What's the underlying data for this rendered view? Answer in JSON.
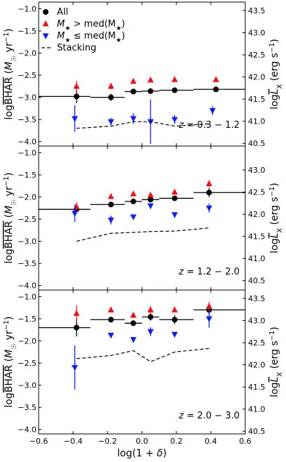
{
  "chart_data": [
    {
      "type": "scatter",
      "annotation": "z = 0.3 − 1.2",
      "xlim": [
        -0.6,
        0.6
      ],
      "ylim": [
        -4.1,
        -0.85
      ],
      "yticks": [
        -1.0,
        -1.5,
        -2.0,
        -2.5,
        -3.0,
        -3.5,
        -4.0
      ],
      "right_ylabel": "logL̄X (erg s⁻¹)",
      "right_ticks": [
        "43.5",
        "43.0",
        "42.5",
        "42.0",
        "41.5",
        "41.0",
        "40.5"
      ],
      "legend": {
        "placement": "upper-left",
        "entries": [
          "All",
          "M★ > med(M★)",
          "M★ ≤ med(M★)",
          "Stacking"
        ]
      },
      "series": [
        {
          "name": "All",
          "marker": "circle",
          "color": "#000000",
          "points": [
            {
              "x": -0.38,
              "y": -2.98,
              "yerr": 0.15,
              "xlo": -0.6,
              "xhi": -0.3
            },
            {
              "x": -0.18,
              "y": -3.0,
              "yerr": 0.08,
              "xlo": -0.3,
              "xhi": -0.1
            },
            {
              "x": -0.05,
              "y": -2.87,
              "yerr": 0.05,
              "xlo": -0.1,
              "xhi": 0.0
            },
            {
              "x": 0.05,
              "y": -2.86,
              "yerr": 0.05,
              "xlo": 0.0,
              "xhi": 0.1
            },
            {
              "x": 0.19,
              "y": -2.84,
              "yerr": 0.05,
              "xlo": 0.1,
              "xhi": 0.3
            },
            {
              "x": 0.43,
              "y": -2.82,
              "yerr": 0.05,
              "xlo": 0.3,
              "xhi": 0.6
            }
          ]
        },
        {
          "name": "M★ > med(M★)",
          "marker": "triangle-up",
          "color": "#e8141b",
          "points": [
            {
              "x": -0.38,
              "y": -2.75,
              "yerr": 0.12
            },
            {
              "x": -0.18,
              "y": -2.75,
              "yerr": 0.07
            },
            {
              "x": -0.05,
              "y": -2.64,
              "yerr": 0.04
            },
            {
              "x": 0.05,
              "y": -2.61,
              "yerr": 0.04
            },
            {
              "x": 0.19,
              "y": -2.6,
              "yerr": 0.03
            },
            {
              "x": 0.43,
              "y": -2.6,
              "yerr": 0.03
            }
          ]
        },
        {
          "name": "M★ ≤ med(M★)",
          "marker": "triangle-down",
          "color": "#1022e8",
          "points": [
            {
              "x": -0.39,
              "y": -3.48,
              "yerr": 0.3
            },
            {
              "x": -0.18,
              "y": -3.55,
              "yerr": 0.08
            },
            {
              "x": -0.05,
              "y": -3.48,
              "yerr": 0.12
            },
            {
              "x": 0.05,
              "y": -3.55,
              "yerr": 0.5
            },
            {
              "x": 0.19,
              "y": -3.5,
              "yerr": 0.1
            },
            {
              "x": 0.41,
              "y": -3.3,
              "yerr": 0.1
            }
          ]
        },
        {
          "name": "Stacking",
          "style": "dashed",
          "color": "#000000",
          "x": [
            -0.38,
            -0.18,
            -0.05,
            0.05,
            0.19,
            0.39
          ],
          "y": [
            -3.7,
            -3.65,
            -3.55,
            -3.55,
            -3.65,
            -3.6
          ]
        }
      ]
    },
    {
      "type": "scatter",
      "annotation": "z = 1.2 − 2.0",
      "xlim": [
        -0.6,
        0.6
      ],
      "ylim": [
        -4.1,
        -0.85
      ],
      "yticks": [
        -1.0,
        -1.5,
        -2.0,
        -2.5,
        -3.0,
        -3.5,
        -4.0
      ],
      "ylabel": "logBHAR (M☉ yr⁻¹)",
      "right_ylabel": "logL̄X (erg s⁻¹)",
      "right_ticks": [
        "43.0",
        "42.5",
        "42.0",
        "41.5",
        "41.0",
        "40.5"
      ],
      "series": [
        {
          "name": "All",
          "marker": "circle",
          "color": "#000000",
          "points": [
            {
              "x": -0.38,
              "y": -2.28,
              "yerr": 0.08,
              "xlo": -0.6,
              "xhi": -0.3
            },
            {
              "x": -0.18,
              "y": -2.17,
              "yerr": 0.06,
              "xlo": -0.3,
              "xhi": -0.1
            },
            {
              "x": -0.05,
              "y": -2.1,
              "yerr": 0.04,
              "xlo": -0.1,
              "xhi": 0.0
            },
            {
              "x": 0.05,
              "y": -2.06,
              "yerr": 0.04,
              "xlo": 0.0,
              "xhi": 0.1
            },
            {
              "x": 0.19,
              "y": -2.03,
              "yerr": 0.03,
              "xlo": 0.1,
              "xhi": 0.3
            },
            {
              "x": 0.39,
              "y": -1.9,
              "yerr": 0.1,
              "xlo": 0.3,
              "xhi": 0.6
            }
          ]
        },
        {
          "name": "M★ > med(M★)",
          "marker": "triangle-up",
          "color": "#e8141b",
          "points": [
            {
              "x": -0.38,
              "y": -2.22,
              "yerr": 0.1
            },
            {
              "x": -0.18,
              "y": -1.99,
              "yerr": 0.05
            },
            {
              "x": -0.05,
              "y": -1.93,
              "yerr": 0.03
            },
            {
              "x": 0.05,
              "y": -1.96,
              "yerr": 0.03
            },
            {
              "x": 0.19,
              "y": -1.89,
              "yerr": 0.03
            },
            {
              "x": 0.39,
              "y": -1.7,
              "yerr": 0.08
            }
          ]
        },
        {
          "name": "M★ ≤ med(M★)",
          "marker": "triangle-down",
          "color": "#1022e8",
          "points": [
            {
              "x": -0.39,
              "y": -2.37,
              "yerr": 0.2
            },
            {
              "x": -0.18,
              "y": -2.52,
              "yerr": 0.1
            },
            {
              "x": -0.05,
              "y": -2.45,
              "yerr": 0.05
            },
            {
              "x": 0.05,
              "y": -2.2,
              "yerr": 0.05
            },
            {
              "x": 0.19,
              "y": -2.4,
              "yerr": 0.04
            },
            {
              "x": 0.39,
              "y": -2.25,
              "yerr": 0.1
            }
          ]
        },
        {
          "name": "Stacking",
          "style": "dashed",
          "color": "#000000",
          "x": [
            -0.38,
            -0.18,
            -0.05,
            0.05,
            0.19,
            0.39
          ],
          "y": [
            -3.0,
            -2.82,
            -2.8,
            -2.78,
            -2.77,
            -2.7
          ]
        }
      ]
    },
    {
      "type": "scatter",
      "annotation": "z = 2.0 − 3.0",
      "xlim": [
        -0.6,
        0.6
      ],
      "ylim": [
        -4.1,
        -0.85
      ],
      "yticks": [
        -1.0,
        -1.5,
        -2.0,
        -2.5,
        -3.0,
        -3.5,
        -4.0
      ],
      "right_ylabel": "logL̄X (erg s⁻¹)",
      "right_ticks": [
        "43.5",
        "43.0",
        "42.5",
        "42.0",
        "41.5",
        "41.0",
        "40.5"
      ],
      "xticks": [
        -0.6,
        -0.4,
        -0.2,
        0.0,
        0.2,
        0.4,
        0.6
      ],
      "xlabel": "log(1 + δ)",
      "series": [
        {
          "name": "All",
          "marker": "circle",
          "color": "#000000",
          "points": [
            {
              "x": -0.38,
              "y": -1.7,
              "yerr": 0.2,
              "xlo": -0.6,
              "xhi": -0.3
            },
            {
              "x": -0.18,
              "y": -1.52,
              "yerr": 0.06,
              "xlo": -0.3,
              "xhi": -0.1
            },
            {
              "x": -0.05,
              "y": -1.6,
              "yerr": 0.03,
              "xlo": -0.1,
              "xhi": 0.0
            },
            {
              "x": 0.05,
              "y": -1.46,
              "yerr": 0.08,
              "xlo": 0.0,
              "xhi": 0.1
            },
            {
              "x": 0.19,
              "y": -1.52,
              "yerr": 0.1,
              "xlo": 0.1,
              "xhi": 0.3
            },
            {
              "x": 0.39,
              "y": -1.3,
              "yerr": 0.1,
              "xlo": 0.3,
              "xhi": 0.6
            }
          ]
        },
        {
          "name": "M★ > med(M★)",
          "marker": "triangle-up",
          "color": "#e8141b",
          "points": [
            {
              "x": -0.38,
              "y": -1.38,
              "yerr": 0.18
            },
            {
              "x": -0.18,
              "y": -1.3,
              "yerr": 0.06
            },
            {
              "x": -0.05,
              "y": -1.42,
              "yerr": 0.04
            },
            {
              "x": 0.05,
              "y": -1.3,
              "yerr": 0.08
            },
            {
              "x": 0.19,
              "y": -1.3,
              "yerr": 0.05
            },
            {
              "x": 0.39,
              "y": -1.22,
              "yerr": 0.1
            }
          ]
        },
        {
          "name": "M★ ≤ med(M★)",
          "marker": "triangle-down",
          "color": "#1022e8",
          "points": [
            {
              "x": -0.39,
              "y": -2.6,
              "yerr": 0.5
            },
            {
              "x": -0.18,
              "y": -1.87,
              "yerr": 0.05
            },
            {
              "x": -0.05,
              "y": -1.97,
              "yerr": 0.06
            },
            {
              "x": 0.05,
              "y": -1.79,
              "yerr": 0.1
            },
            {
              "x": 0.19,
              "y": -1.85,
              "yerr": 0.05
            },
            {
              "x": 0.39,
              "y": -1.5,
              "yerr": 0.2
            }
          ]
        },
        {
          "name": "Stacking",
          "style": "dashed",
          "color": "#000000",
          "x": [
            -0.38,
            -0.18,
            -0.05,
            0.05,
            0.19,
            0.39
          ],
          "y": [
            -2.4,
            -2.33,
            -2.22,
            -2.47,
            -2.25,
            -2.17
          ]
        }
      ]
    }
  ]
}
